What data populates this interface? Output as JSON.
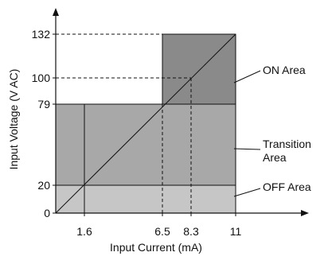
{
  "chart_data": {
    "type": "area",
    "title": "",
    "xlabel": "Input Current (mA)",
    "ylabel": "Input Voltage (V AC)",
    "x_ticks": [
      "1.6",
      "6.5",
      "8.3",
      "11"
    ],
    "y_ticks": [
      "0",
      "20",
      "79",
      "100",
      "132"
    ],
    "xlim": [
      0,
      11
    ],
    "ylim": [
      0,
      132
    ],
    "regions": [
      {
        "name": "OFF Area",
        "x": [
          0,
          11
        ],
        "y": [
          0,
          20
        ],
        "color": "#c6c6c6"
      },
      {
        "name": "Transition Area",
        "x": [
          0,
          11
        ],
        "y": [
          20,
          79
        ],
        "color": "#a8a8a8"
      },
      {
        "name": "ON Area",
        "x": [
          6.5,
          11
        ],
        "y": [
          79,
          132
        ],
        "color": "#8a8a8a"
      }
    ],
    "labels": {
      "on": "ON Area",
      "transition_line1": "Transition",
      "transition_line2": "Area",
      "off": "OFF Area"
    },
    "diagonal_line": {
      "x": [
        0,
        11
      ],
      "y": [
        0,
        132
      ]
    },
    "reference_points": [
      {
        "x": 1.6,
        "y": 20
      },
      {
        "x": 6.5,
        "y": 79
      },
      {
        "x": 8.3,
        "y": 100
      },
      {
        "x": 11,
        "y": 132
      }
    ],
    "grid": false,
    "legend": "none"
  }
}
